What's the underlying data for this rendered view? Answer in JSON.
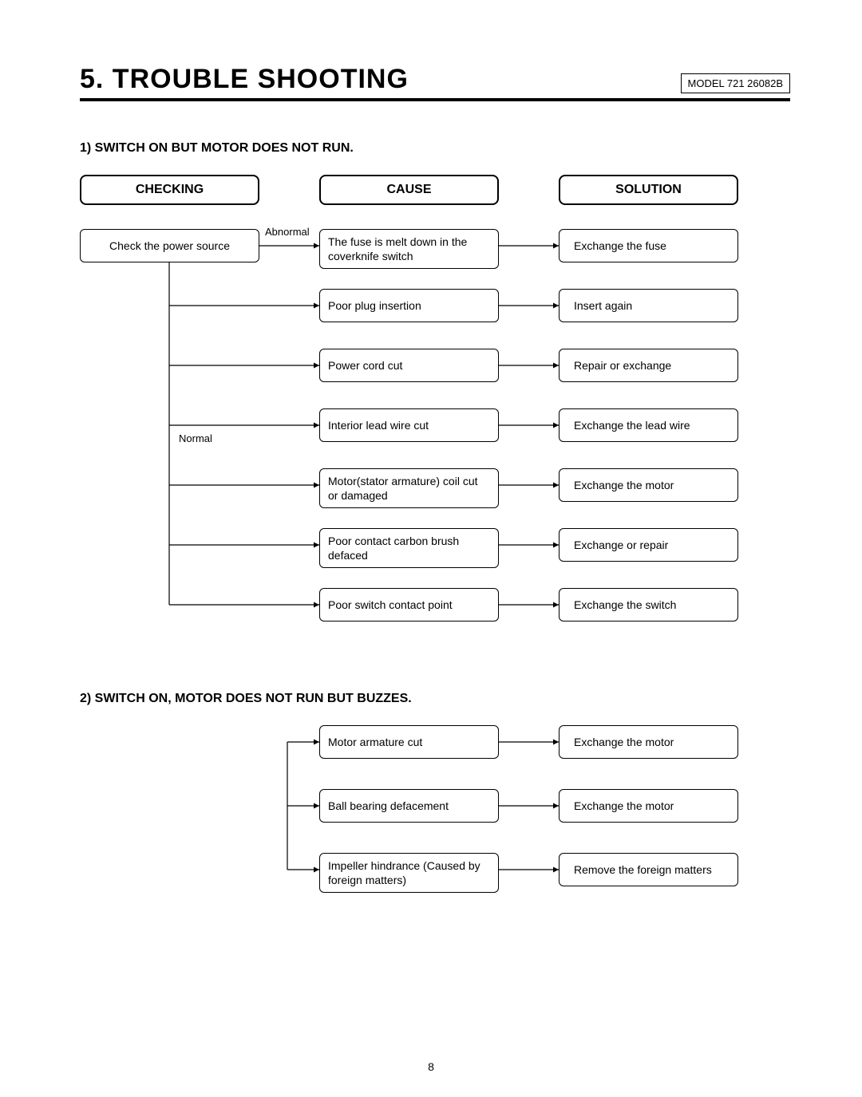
{
  "header": {
    "title": "5. TROUBLE SHOOTING",
    "model": "MODEL 721 26082B"
  },
  "section1": {
    "subtitle": "1) SWITCH ON BUT MOTOR DOES NOT RUN.",
    "columns": {
      "checking": "CHECKING",
      "cause": "CAUSE",
      "solution": "SOLUTION"
    },
    "check_node": "Check the power source",
    "labels": {
      "abnormal": "Abnormal",
      "normal": "Normal"
    },
    "rows": [
      {
        "cause": "The fuse is melt down in the coverknife switch",
        "solution": "Exchange the fuse"
      },
      {
        "cause": "Poor plug insertion",
        "solution": "Insert again"
      },
      {
        "cause": "Power cord cut",
        "solution": "Repair or exchange"
      },
      {
        "cause": "Interior lead wire cut",
        "solution": "Exchange the lead wire"
      },
      {
        "cause": "Motor(stator armature) coil cut or damaged",
        "solution": "Exchange the motor"
      },
      {
        "cause": "Poor contact carbon brush defaced",
        "solution": "Exchange or repair"
      },
      {
        "cause": "Poor switch contact point",
        "solution": "Exchange the switch"
      }
    ]
  },
  "section2": {
    "subtitle": "2) SWITCH ON, MOTOR DOES NOT RUN BUT BUZZES.",
    "rows": [
      {
        "cause": "Motor armature cut",
        "solution": "Exchange the motor"
      },
      {
        "cause": "Ball bearing defacement",
        "solution": "Exchange the motor"
      },
      {
        "cause": "Impeller hindrance (Caused by foreign matters)",
        "solution": "Remove the foreign matters"
      }
    ]
  },
  "page_number": "8",
  "style": {
    "row_spacing": 75,
    "row_spacing2": 80,
    "arrow_color": "#000000",
    "box_border": "#000000",
    "background": "#ffffff",
    "font_body": 14,
    "font_title": 34,
    "font_sub": 16
  }
}
